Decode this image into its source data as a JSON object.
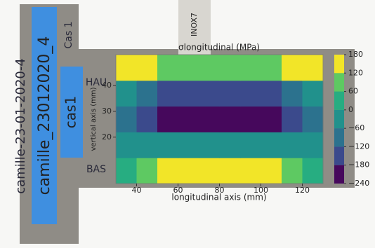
{
  "photo_labels": {
    "tag_main": "camille_23012020_4",
    "tag_case": "cas1",
    "handwriting": "camille-23-01-2020-4",
    "top_mark": "HAU",
    "bottom_mark": "BAS",
    "corner_mark": "Cas 1",
    "ruler": "INOX7"
  },
  "chart_data": {
    "type": "contour",
    "title": "σlongitudinal (MPa)",
    "x_label": "longitudinal axis (mm)",
    "y_label": "vertical axis (mm)",
    "x": [
      35,
      45,
      55,
      65,
      75,
      85,
      95,
      105,
      115,
      125
    ],
    "y": [
      7,
      17,
      27,
      37,
      47
    ],
    "z": [
      [
        20,
        60,
        130,
        150,
        150,
        150,
        150,
        140,
        60,
        20
      ],
      [
        -20,
        -40,
        -60,
        -40,
        -40,
        -40,
        -40,
        -60,
        -40,
        -20
      ],
      [
        -90,
        -150,
        -200,
        -200,
        -210,
        -210,
        -200,
        -200,
        -150,
        -90
      ],
      [
        -60,
        -100,
        -130,
        -130,
        -140,
        -140,
        -130,
        -130,
        -100,
        -60
      ],
      [
        130,
        140,
        100,
        80,
        90,
        100,
        90,
        100,
        140,
        130
      ]
    ],
    "xlim": [
      30,
      130
    ],
    "ylim": [
      2,
      52
    ],
    "xticks": [
      40,
      60,
      80,
      100,
      120
    ],
    "yticks": [
      20,
      30,
      40
    ],
    "levels": [
      {
        "value": -240,
        "label": "−240"
      },
      {
        "value": -180,
        "label": "−180"
      },
      {
        "value": -120,
        "label": "−120"
      },
      {
        "value": -60,
        "label": "−60"
      },
      0,
      60,
      120,
      180
    ],
    "colors": [
      "#46085c",
      "#3b4a8c",
      "#2c728e",
      "#21918c",
      "#27ad81",
      "#5ec962",
      "#f2e528"
    ]
  }
}
